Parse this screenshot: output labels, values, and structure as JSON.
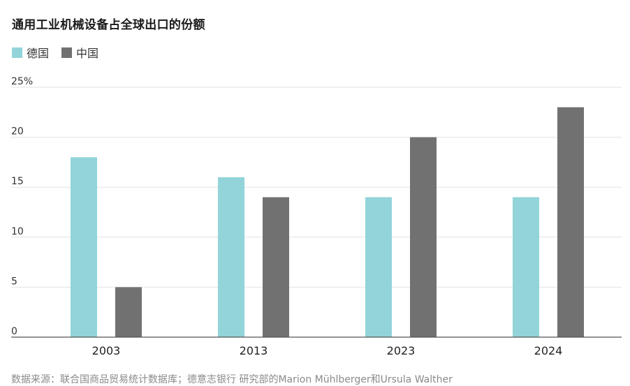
{
  "chart_data": {
    "type": "bar",
    "title": "通用工业机械设备占全球出口的份额",
    "categories": [
      "2003",
      "2013",
      "2023",
      "2024"
    ],
    "series": [
      {
        "name": "德国",
        "color": "#92d4d9",
        "values": [
          18,
          16,
          14,
          14
        ]
      },
      {
        "name": "中国",
        "color": "#717171",
        "values": [
          5,
          14,
          20,
          23
        ]
      }
    ],
    "yticks": [
      "0",
      "5",
      "10",
      "15",
      "20",
      "25%"
    ],
    "ylim": [
      0,
      25
    ],
    "grid": true,
    "legend": "top-left",
    "source": "数据来源：联合国商品贸易统计数据库；德意志银行 研究部的Marion Mühlberger和Ursula Walther"
  }
}
